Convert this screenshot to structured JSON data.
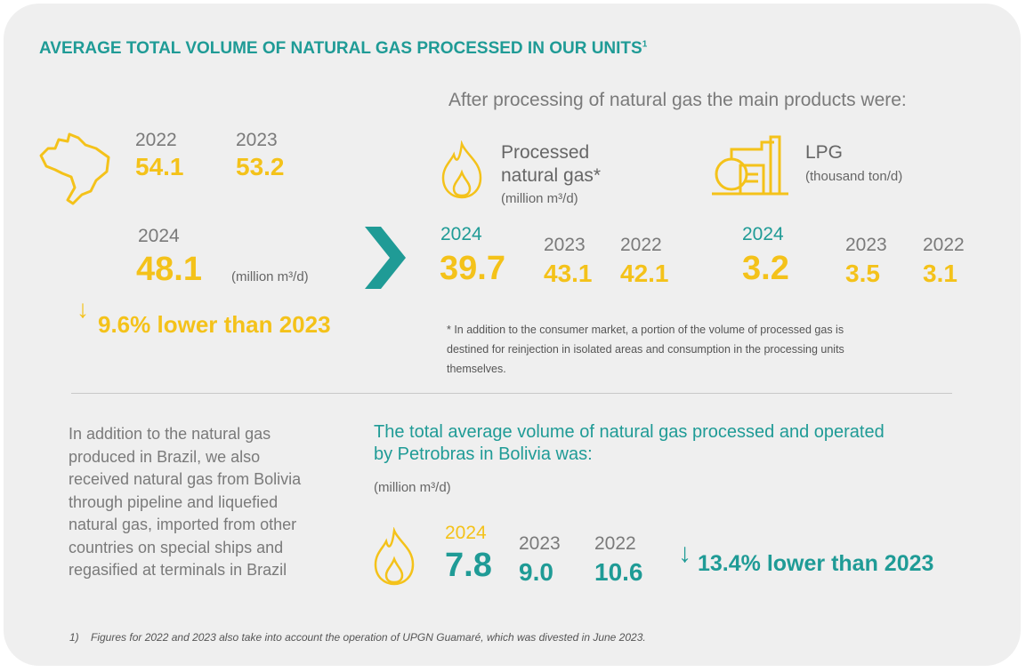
{
  "title": "AVERAGE TOTAL VOLUME OF NATURAL GAS PROCESSED IN OUR UNITS",
  "title_sup": "1",
  "brazil": {
    "y2022": "2022",
    "v2022": "54.1",
    "y2023": "2023",
    "v2023": "53.2",
    "y2024": "2024",
    "v2024": "48.1",
    "unit": "(million m³/d)",
    "change": "9.6% lower than 2023"
  },
  "products_intro": "After processing of natural gas the main products were:",
  "gas": {
    "label1": "Processed",
    "label2": "natural gas*",
    "unit": "(million m³/d)",
    "y2024": "2024",
    "v2024": "39.7",
    "y2023": "2023",
    "v2023": "43.1",
    "y2022": "2022",
    "v2022": "42.1"
  },
  "lpg": {
    "label": "LPG",
    "unit": "(thousand ton/d)",
    "y2024": "2024",
    "v2024": "3.2",
    "y2023": "2023",
    "v2023": "3.5",
    "y2022": "2022",
    "v2022": "3.1"
  },
  "footnote_star": [
    "* In addition to the consumer market, a portion of the volume of processed gas is",
    "destined for reinjection in isolated areas and consumption in the processing units",
    "themselves."
  ],
  "import_text": [
    "In addition to the natural gas",
    "produced in Brazil, we also",
    "received natural gas from Bolivia",
    "through pipeline and liquefied",
    "natural gas, imported from other",
    "countries on special ships and",
    "regasified at terminals in Brazil"
  ],
  "bolivia": {
    "heading1": "The total average volume of natural gas processed and operated",
    "heading2": "by Petrobras in Bolivia was:",
    "unit": "(million m³/d)",
    "y2024": "2024",
    "v2024": "7.8",
    "y2023": "2023",
    "v2023": "9.0",
    "y2022": "2022",
    "v2022": "10.6",
    "change": "13.4% lower than 2023"
  },
  "footnote_1": "1)    Figures for 2022 and 2023 also take into account the operation of UPGN Guamaré, which was divested in June 2023.",
  "colors": {
    "teal": "#1f9b96",
    "yellow": "#f4c21a"
  }
}
